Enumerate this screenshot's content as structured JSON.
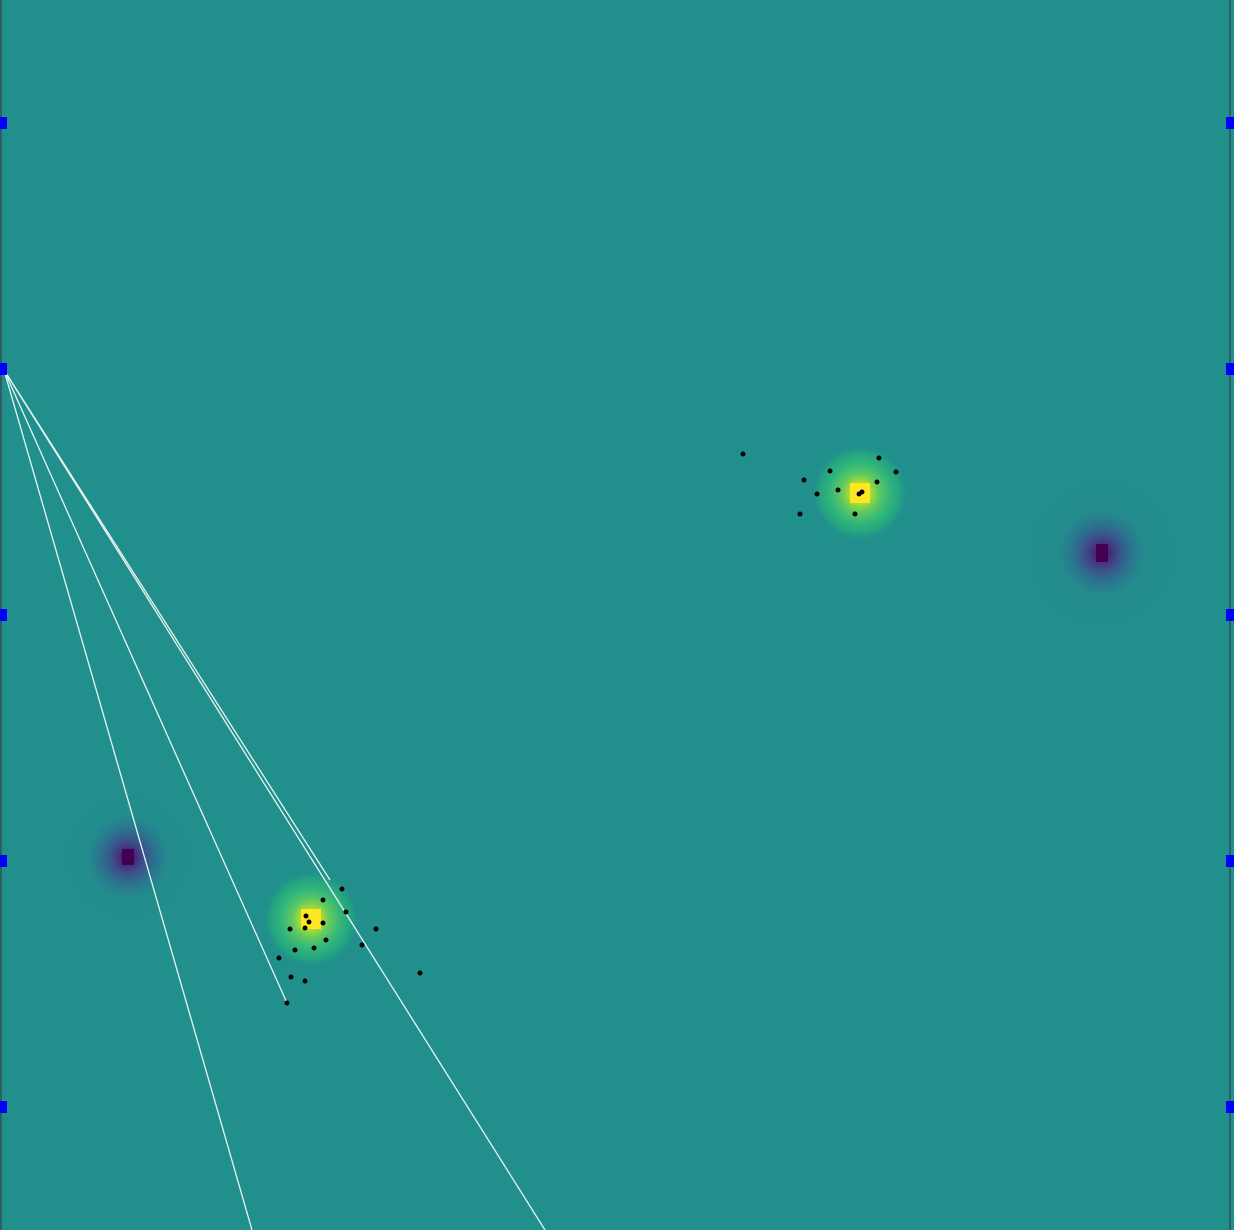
{
  "field": {
    "colormap": "viridis",
    "background_color": "#21908d",
    "line_color": "#ffffff",
    "point_color": "#000000",
    "tick_color": "#0000ff"
  },
  "sources": [
    {
      "name": "source-upper-right",
      "sign": "positive",
      "color": "#fde725"
    },
    {
      "name": "source-lower-left",
      "sign": "positive",
      "color": "#fde725"
    }
  ],
  "sinks": [
    {
      "name": "sink-right",
      "sign": "negative",
      "color": "#440154"
    },
    {
      "name": "sink-left",
      "sign": "negative",
      "color": "#440154"
    }
  ],
  "rays": {
    "count": 4,
    "origin": "left-edge-marker-2"
  },
  "markers": {
    "left_count": 5,
    "right_count": 5
  }
}
